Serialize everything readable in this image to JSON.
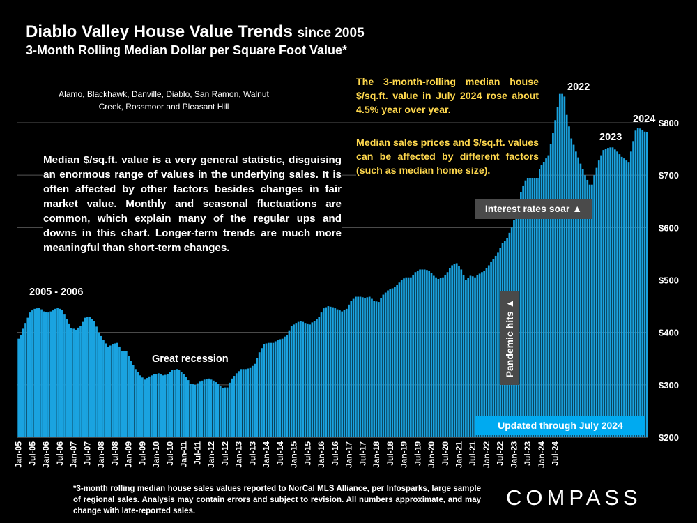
{
  "title": {
    "main": "Diablo Valley House Value Trends",
    "since": "since 2005",
    "subtitle": "3-Month Rolling Median Dollar per Square Foot Value*"
  },
  "region_text": "Alamo, Blackhawk, Danville, Diablo, San Ramon, Walnut Creek, Rossmoor and Pleasant Hill",
  "note_text": "Median $/sq.ft. value is a very general statistic, disguising an enormous range of values in the underlying sales. It is often affected by other factors besides changes in fair market value. Monthly and seasonal fluctuations are common, which explain many of the regular ups and downs in this chart. Longer-term trends are much more meaningful than short-term changes.",
  "yellow_text_1": "The 3-month-rolling median house $/sq.ft. value in July 2024 rose about 4.5% year over year.",
  "yellow_text_2": "Median sales prices and $/sq.ft. values can be affected by different factors (such as median home size).",
  "annotations": {
    "y2005": "2005 - 2006",
    "recession": "Great recession",
    "y2022": "2022",
    "y2023": "2023",
    "y2024": "2024",
    "interest": "Interest rates soar ▲",
    "pandemic": "Pandemic hits ▲",
    "updated": "Updated through July 2024"
  },
  "footnote": "*3-month rolling median house sales values reported to NorCal MLS Alliance, per Infosparks, large sample of regional sales. Analysis may contain errors and subject to revision. All numbers approximate, and may change with late-reported sales.",
  "logo": "COMPASS",
  "colors": {
    "bar": "#1aa3e0",
    "bar_edge": "#0a4c70",
    "grid": "#555555",
    "highlight": "#00aaf0",
    "yellow": "#ffd84d"
  },
  "chart_data": {
    "type": "bar",
    "title": "Diablo Valley House Value Trends since 2005",
    "subtitle": "3-Month Rolling Median Dollar per Square Foot Value*",
    "xlabel": "",
    "ylabel": "",
    "ylim": [
      200,
      800
    ],
    "yticks": [
      200,
      300,
      400,
      500,
      600,
      700,
      800
    ],
    "ytick_labels": [
      "$200",
      "$300",
      "$400",
      "$500",
      "$600",
      "$700",
      "$800"
    ],
    "grid": true,
    "start": "Jan-05",
    "end": "Jul-24",
    "xtick_labels": [
      "Jan-05",
      "Jul-05",
      "Jan-06",
      "Jul-06",
      "Jan-07",
      "Jul-07",
      "Jan-08",
      "Jul-08",
      "Jan-09",
      "Jul-09",
      "Jan-10",
      "Jul-10",
      "Jan-11",
      "Jul-11",
      "Jan-12",
      "Jul-12",
      "Jan-13",
      "Jul-13",
      "Jan-14",
      "Jul-14",
      "Jan-15",
      "Jul-15",
      "Jan-16",
      "Jul-16",
      "Jan-17",
      "Jul-17",
      "Jan-18",
      "Jul-18",
      "Jan-19",
      "Jul-19",
      "Jan-20",
      "Jul-20",
      "Jan-21",
      "Jul-21",
      "Jan-22",
      "Jul-22",
      "Jan-23",
      "Jul-23",
      "Jan-24",
      "Jul-24"
    ],
    "anchors": [
      [
        0,
        388
      ],
      [
        1,
        395
      ],
      [
        3,
        418
      ],
      [
        5,
        438
      ],
      [
        7,
        445
      ],
      [
        9,
        447
      ],
      [
        11,
        440
      ],
      [
        13,
        438
      ],
      [
        15,
        442
      ],
      [
        17,
        447
      ],
      [
        19,
        443
      ],
      [
        21,
        425
      ],
      [
        23,
        408
      ],
      [
        25,
        405
      ],
      [
        27,
        412
      ],
      [
        29,
        428
      ],
      [
        31,
        430
      ],
      [
        33,
        422
      ],
      [
        35,
        400
      ],
      [
        37,
        385
      ],
      [
        39,
        372
      ],
      [
        41,
        378
      ],
      [
        43,
        380
      ],
      [
        45,
        365
      ],
      [
        47,
        364
      ],
      [
        49,
        345
      ],
      [
        51,
        330
      ],
      [
        53,
        318
      ],
      [
        55,
        310
      ],
      [
        57,
        316
      ],
      [
        59,
        320
      ],
      [
        61,
        322
      ],
      [
        63,
        318
      ],
      [
        65,
        320
      ],
      [
        67,
        328
      ],
      [
        69,
        330
      ],
      [
        71,
        325
      ],
      [
        73,
        315
      ],
      [
        75,
        302
      ],
      [
        77,
        300
      ],
      [
        79,
        306
      ],
      [
        81,
        310
      ],
      [
        83,
        312
      ],
      [
        85,
        308
      ],
      [
        87,
        302
      ],
      [
        89,
        294
      ],
      [
        91,
        295
      ],
      [
        93,
        312
      ],
      [
        95,
        322
      ],
      [
        97,
        330
      ],
      [
        99,
        330
      ],
      [
        101,
        332
      ],
      [
        103,
        340
      ],
      [
        105,
        362
      ],
      [
        107,
        378
      ],
      [
        109,
        380
      ],
      [
        111,
        380
      ],
      [
        113,
        385
      ],
      [
        115,
        388
      ],
      [
        117,
        395
      ],
      [
        119,
        412
      ],
      [
        121,
        418
      ],
      [
        123,
        422
      ],
      [
        125,
        418
      ],
      [
        127,
        415
      ],
      [
        129,
        422
      ],
      [
        131,
        430
      ],
      [
        133,
        446
      ],
      [
        135,
        450
      ],
      [
        137,
        448
      ],
      [
        139,
        444
      ],
      [
        141,
        440
      ],
      [
        143,
        445
      ],
      [
        145,
        460
      ],
      [
        147,
        468
      ],
      [
        149,
        468
      ],
      [
        151,
        466
      ],
      [
        153,
        468
      ],
      [
        155,
        460
      ],
      [
        157,
        458
      ],
      [
        159,
        472
      ],
      [
        161,
        480
      ],
      [
        163,
        484
      ],
      [
        165,
        490
      ],
      [
        167,
        500
      ],
      [
        169,
        505
      ],
      [
        171,
        505
      ],
      [
        173,
        515
      ],
      [
        175,
        520
      ],
      [
        177,
        520
      ],
      [
        179,
        518
      ],
      [
        181,
        508
      ],
      [
        183,
        502
      ],
      [
        185,
        505
      ],
      [
        187,
        515
      ],
      [
        189,
        528
      ],
      [
        191,
        532
      ],
      [
        193,
        520
      ],
      [
        195,
        500
      ],
      [
        197,
        508
      ],
      [
        199,
        505
      ],
      [
        201,
        512
      ],
      [
        203,
        518
      ],
      [
        205,
        528
      ],
      [
        207,
        540
      ],
      [
        209,
        552
      ],
      [
        211,
        570
      ],
      [
        213,
        580
      ],
      [
        215,
        600
      ],
      [
        217,
        630
      ],
      [
        219,
        668
      ],
      [
        221,
        690
      ],
      [
        223,
        700
      ],
      [
        225,
        703
      ],
      [
        227,
        712
      ],
      [
        229,
        725
      ],
      [
        231,
        738
      ],
      [
        233,
        780
      ],
      [
        235,
        830
      ],
      [
        236,
        855
      ],
      [
        237,
        855
      ],
      [
        238,
        850
      ],
      [
        239,
        815
      ],
      [
        241,
        770
      ],
      [
        243,
        745
      ],
      [
        245,
        722
      ],
      [
        247,
        700
      ],
      [
        249,
        682
      ],
      [
        250,
        682
      ],
      [
        251,
        700
      ],
      [
        253,
        728
      ],
      [
        255,
        748
      ],
      [
        257,
        752
      ],
      [
        259,
        753
      ],
      [
        261,
        745
      ],
      [
        263,
        735
      ],
      [
        265,
        728
      ],
      [
        266,
        724
      ],
      [
        267,
        745
      ],
      [
        269,
        785
      ],
      [
        270,
        790
      ],
      [
        271,
        789
      ],
      [
        272,
        786
      ],
      [
        273,
        783
      ],
      [
        274,
        782
      ]
    ]
  }
}
